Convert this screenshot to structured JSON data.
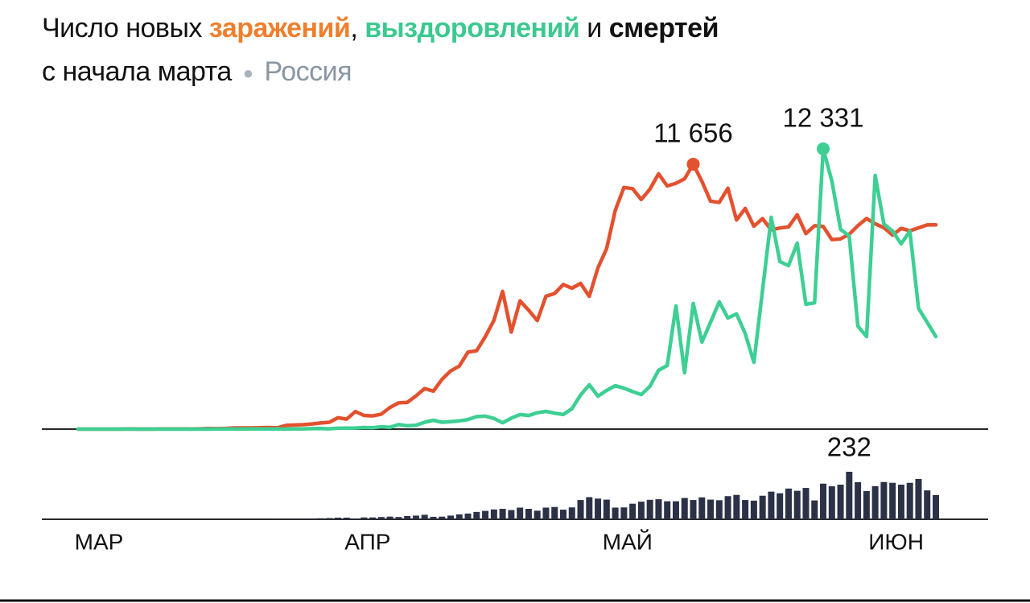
{
  "header": {
    "lead": "Число новых",
    "sep1": ",",
    "sep2": "и",
    "subtitle": "с начала марта",
    "region": "Россия"
  },
  "chart_data": [
    {
      "type": "line",
      "categories": [
        "МАР",
        null,
        null,
        null,
        null,
        null,
        null,
        null,
        null,
        null,
        null,
        null,
        null,
        null,
        null,
        null,
        null,
        null,
        null,
        null,
        null,
        null,
        null,
        null,
        null,
        null,
        null,
        null,
        null,
        null,
        null,
        "АПР",
        null,
        null,
        null,
        null,
        null,
        null,
        null,
        null,
        null,
        null,
        null,
        null,
        null,
        null,
        null,
        null,
        null,
        null,
        null,
        null,
        null,
        null,
        null,
        null,
        null,
        null,
        null,
        null,
        null,
        "МАЙ",
        null,
        null,
        null,
        null,
        null,
        null,
        null,
        null,
        null,
        null,
        null,
        null,
        null,
        null,
        null,
        null,
        null,
        null,
        null,
        null,
        null,
        null,
        null,
        null,
        null,
        null,
        null,
        null,
        null,
        null,
        "ИЮН",
        null,
        null,
        null,
        null,
        null,
        null,
        null
      ],
      "ylim": [
        0,
        13000
      ],
      "series": [
        {
          "name": "заражений",
          "color": "#e3512e",
          "title_color": "#ef7f2c",
          "values": [
            0,
            1,
            0,
            0,
            1,
            0,
            6,
            0,
            0,
            3,
            8,
            6,
            11,
            4,
            14,
            30,
            20,
            33,
            52,
            54,
            53,
            61,
            71,
            57,
            163,
            182,
            196,
            228,
            270,
            302,
            500,
            440,
            771,
            601,
            582,
            658,
            954,
            1154,
            1175,
            1459,
            1786,
            1667,
            2186,
            2558,
            2774,
            3388,
            3448,
            4070,
            4785,
            6060,
            4268,
            5642,
            5236,
            4774,
            5849,
            5966,
            6361,
            6198,
            6411,
            5841,
            7099,
            7933,
            9623,
            10633,
            10581,
            10102,
            10559,
            11231,
            10699,
            10817,
            11012,
            11656,
            10899,
            10028,
            9974,
            10598,
            9200,
            9709,
            8926,
            9263,
            8764,
            8849,
            8894,
            9434,
            8599,
            8946,
            8915,
            8338,
            8371,
            8572,
            8952,
            9268,
            9035,
            8863,
            8536,
            8831,
            8726,
            8855,
            8984,
            8985
          ],
          "value_labels": [
            null,
            null,
            null,
            null,
            null,
            null,
            null,
            null,
            null,
            null,
            null,
            null,
            null,
            null,
            null,
            null,
            null,
            null,
            null,
            null,
            null,
            null,
            null,
            null,
            null,
            null,
            null,
            null,
            null,
            null,
            null,
            null,
            null,
            null,
            null,
            null,
            null,
            null,
            null,
            null,
            null,
            null,
            null,
            null,
            null,
            null,
            null,
            null,
            null,
            null,
            null,
            null,
            null,
            null,
            null,
            null,
            null,
            null,
            null,
            null,
            null,
            null,
            null,
            null,
            null,
            null,
            null,
            null,
            null,
            null,
            null,
            "11 656",
            null,
            null,
            null,
            null,
            null,
            null,
            null,
            null,
            null,
            null,
            null,
            null,
            null,
            null,
            null,
            null,
            null,
            null,
            null,
            null,
            null,
            null,
            null,
            null,
            null,
            null,
            null,
            null
          ]
        },
        {
          "name": "выздоровлений",
          "color": "#3dcf93",
          "title_color": "#3cc98f",
          "values": [
            0,
            0,
            0,
            0,
            0,
            0,
            0,
            0,
            0,
            0,
            0,
            0,
            0,
            0,
            0,
            0,
            2,
            3,
            5,
            5,
            8,
            9,
            4,
            7,
            0,
            10,
            9,
            21,
            30,
            15,
            38,
            45,
            50,
            71,
            60,
            105,
            80,
            200,
            150,
            170,
            300,
            390,
            300,
            330,
            360,
            420,
            550,
            570,
            470,
            280,
            480,
            640,
            600,
            720,
            780,
            700,
            640,
            900,
            1500,
            1950,
            1450,
            1700,
            1910,
            1800,
            1650,
            1520,
            1880,
            2590,
            2800,
            5420,
            2480,
            5530,
            3830,
            4700,
            5600,
            4890,
            5070,
            4200,
            2940,
            6100,
            9320,
            7370,
            7190,
            8180,
            5490,
            5560,
            12331,
            10910,
            8790,
            8500,
            4530,
            4070,
            11160,
            9030,
            8710,
            8150,
            8710,
            5310,
            4700,
            4070
          ],
          "value_labels": [
            null,
            null,
            null,
            null,
            null,
            null,
            null,
            null,
            null,
            null,
            null,
            null,
            null,
            null,
            null,
            null,
            null,
            null,
            null,
            null,
            null,
            null,
            null,
            null,
            null,
            null,
            null,
            null,
            null,
            null,
            null,
            null,
            null,
            null,
            null,
            null,
            null,
            null,
            null,
            null,
            null,
            null,
            null,
            null,
            null,
            null,
            null,
            null,
            null,
            null,
            null,
            null,
            null,
            null,
            null,
            null,
            null,
            null,
            null,
            null,
            null,
            null,
            null,
            null,
            null,
            null,
            null,
            null,
            null,
            null,
            null,
            null,
            null,
            null,
            null,
            null,
            null,
            null,
            null,
            null,
            null,
            null,
            null,
            null,
            null,
            null,
            "12 331",
            null,
            null,
            null,
            null,
            null,
            null,
            null,
            null,
            null,
            null,
            null,
            null,
            null
          ]
        }
      ]
    },
    {
      "type": "bar",
      "ylim": [
        0,
        250
      ],
      "series": [
        {
          "name": "смертей",
          "color": "#2b3147",
          "title_color": "#111111",
          "values": [
            0,
            0,
            0,
            0,
            0,
            0,
            0,
            0,
            0,
            0,
            0,
            0,
            0,
            0,
            0,
            0,
            0,
            0,
            0,
            0,
            0,
            0,
            0,
            2,
            3,
            3,
            4,
            4,
            5,
            6,
            8,
            8,
            4,
            9,
            9,
            11,
            13,
            11,
            16,
            18,
            22,
            12,
            13,
            18,
            24,
            28,
            36,
            41,
            48,
            51,
            45,
            57,
            51,
            42,
            57,
            60,
            47,
            58,
            94,
            108,
            101,
            96,
            57,
            58,
            76,
            86,
            95,
            98,
            88,
            88,
            104,
            94,
            107,
            96,
            93,
            113,
            119,
            94,
            91,
            115,
            135,
            127,
            150,
            139,
            153,
            92,
            174,
            161,
            169,
            232,
            181,
            138,
            162,
            182,
            178,
            169,
            178,
            197,
            141,
            118
          ]
        }
      ]
    }
  ]
}
